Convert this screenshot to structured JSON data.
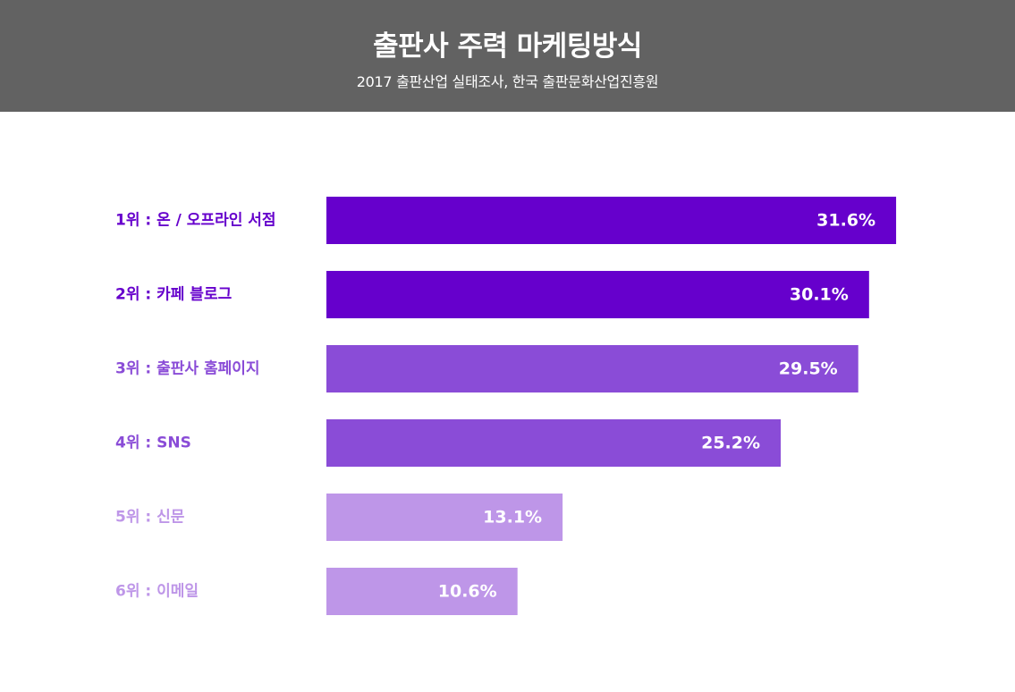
{
  "header": {
    "title": "출판사 주력 마케팅방식",
    "subtitle": "2017 출판산업 실태조사, 한국 출판문화산업진흥원"
  },
  "colors": {
    "header_bg": "#626262",
    "tier_top": "#6600cc",
    "tier_mid": "#8a4cd7",
    "tier_low": "#be96e8"
  },
  "chart_data": {
    "type": "bar",
    "orientation": "horizontal",
    "title": "출판사 주력 마케팅방식",
    "subtitle": "2017 출판산업 실태조사, 한국 출판문화산업진흥원",
    "categories": [
      "1위 : 온 / 오프라인 서점",
      "2위 : 카페 블로그",
      "3위 : 출판사 홈페이지",
      "4위 : SNS",
      "5위 : 신문",
      "6위 : 이메일"
    ],
    "values": [
      31.6,
      30.1,
      29.5,
      25.2,
      13.1,
      10.6
    ],
    "value_labels": [
      "31.6%",
      "30.1%",
      "29.5%",
      "25.2%",
      "13.1%",
      "10.6%"
    ],
    "bar_colors": [
      "#6600cc",
      "#6600cc",
      "#8a4cd7",
      "#8a4cd7",
      "#be96e8",
      "#be96e8"
    ],
    "label_colors": [
      "#6600cc",
      "#6600cc",
      "#8a4cd7",
      "#8a4cd7",
      "#be96e8",
      "#be96e8"
    ],
    "xlim": [
      0,
      34
    ],
    "grid": false,
    "legend": "none",
    "xlabel": "",
    "ylabel": ""
  }
}
